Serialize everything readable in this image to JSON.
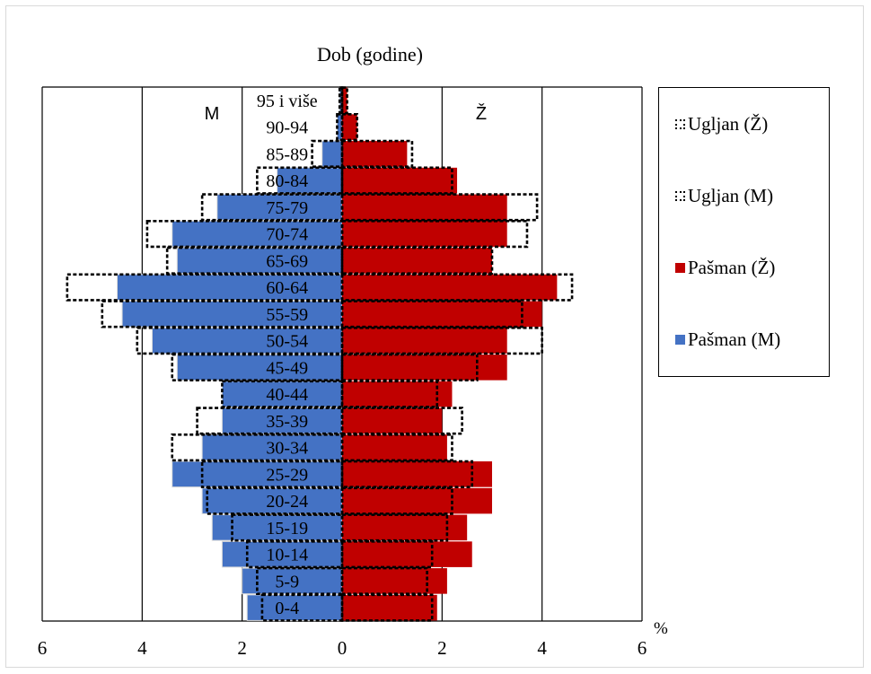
{
  "chart_data": {
    "type": "bar",
    "title": "Dob (godine)",
    "orientation": "horizontal-population-pyramid",
    "categories": [
      "0-4",
      "5-9",
      "10-14",
      "15-19",
      "20-24",
      "25-29",
      "30-34",
      "35-39",
      "40-44",
      "45-49",
      "50-54",
      "55-59",
      "60-64",
      "65-69",
      "70-74",
      "75-79",
      "80-84",
      "85-89",
      "90-94",
      "95 i više"
    ],
    "side_labels": {
      "left": "M",
      "right": "Ž"
    },
    "x_unit_label": "%",
    "xlim": [
      -6,
      6
    ],
    "x_ticks": [
      -6,
      -4,
      -2,
      0,
      2,
      4,
      6
    ],
    "x_tick_labels": [
      "6",
      "4",
      "2",
      "0",
      "2",
      "4",
      "6"
    ],
    "grid": true,
    "legend_position": "right",
    "series": [
      {
        "name": "Ugljan (Ž)",
        "side": "right",
        "style": "dashed-outline",
        "values": [
          1.8,
          1.7,
          1.8,
          2.1,
          2.2,
          2.6,
          2.2,
          2.4,
          1.9,
          2.7,
          4.0,
          3.6,
          4.6,
          3.0,
          3.7,
          3.9,
          2.2,
          1.4,
          0.3,
          0.1
        ]
      },
      {
        "name": "Ugljan (M)",
        "side": "left",
        "style": "dashed-outline",
        "values": [
          1.6,
          1.7,
          1.9,
          2.2,
          2.7,
          2.8,
          3.4,
          2.9,
          2.4,
          3.4,
          4.1,
          4.8,
          5.5,
          3.5,
          3.9,
          2.8,
          1.7,
          0.6,
          0.1,
          0.05
        ]
      },
      {
        "name": "Pašman (Ž)",
        "side": "right",
        "style": "filled",
        "values": [
          1.9,
          2.1,
          2.6,
          2.5,
          3.0,
          3.0,
          2.1,
          2.0,
          2.2,
          3.3,
          3.3,
          4.0,
          4.3,
          3.0,
          3.3,
          3.3,
          2.3,
          1.3,
          0.3,
          0.1
        ]
      },
      {
        "name": "Pašman (M)",
        "side": "left",
        "style": "filled",
        "values": [
          1.9,
          2.0,
          2.4,
          2.6,
          2.8,
          3.4,
          2.8,
          2.4,
          2.4,
          3.3,
          3.8,
          4.4,
          4.5,
          3.3,
          3.4,
          2.5,
          1.3,
          0.4,
          0.1,
          0.05
        ]
      }
    ],
    "colors": {
      "Pašman (Ž)": "#c00000",
      "Pašman (M)": "#4472c4",
      "Ugljan": "#000000"
    }
  }
}
